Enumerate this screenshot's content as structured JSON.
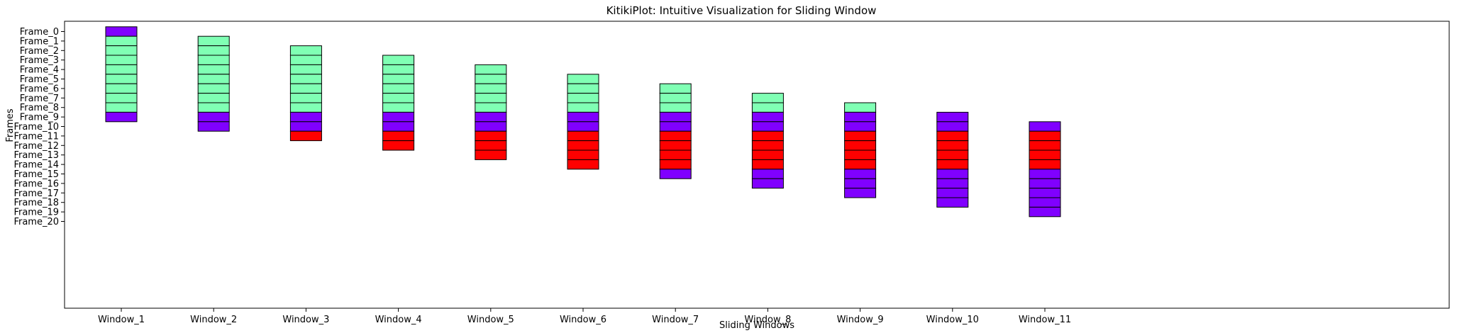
{
  "chart_data": {
    "type": "bar",
    "title": "KitikiPlot: Intuitive Visualization for Sliding Window",
    "xlabel": "Sliding Windows",
    "ylabel": "Frames",
    "categories": [
      "Window_1",
      "Window_2",
      "Window_3",
      "Window_4",
      "Window_5",
      "Window_6",
      "Window_7",
      "Window_8",
      "Window_9",
      "Window_10",
      "Window_11"
    ],
    "y_ticks": [
      "Frame_0",
      "Frame_1",
      "Frame_2",
      "Frame_3",
      "Frame_4",
      "Frame_5",
      "Frame_6",
      "Frame_7",
      "Frame_8",
      "Frame_9",
      "Frame_10",
      "Frame_11",
      "Frame_12",
      "Frame_13",
      "Frame_14",
      "Frame_15",
      "Frame_16",
      "Frame_17",
      "Frame_18",
      "Frame_19",
      "Frame_20"
    ],
    "grid": false,
    "colors": {
      "purple": "#8000ff",
      "green": "#80ffb4",
      "red": "#ff0000"
    },
    "windows": [
      {
        "start": 0,
        "cells": [
          "purple",
          "green",
          "green",
          "green",
          "green",
          "green",
          "green",
          "green",
          "green",
          "purple"
        ]
      },
      {
        "start": 1,
        "cells": [
          "green",
          "green",
          "green",
          "green",
          "green",
          "green",
          "green",
          "green",
          "purple",
          "purple"
        ]
      },
      {
        "start": 2,
        "cells": [
          "green",
          "green",
          "green",
          "green",
          "green",
          "green",
          "green",
          "purple",
          "purple",
          "red"
        ]
      },
      {
        "start": 3,
        "cells": [
          "green",
          "green",
          "green",
          "green",
          "green",
          "green",
          "purple",
          "purple",
          "red",
          "red"
        ]
      },
      {
        "start": 4,
        "cells": [
          "green",
          "green",
          "green",
          "green",
          "green",
          "purple",
          "purple",
          "red",
          "red",
          "red"
        ]
      },
      {
        "start": 5,
        "cells": [
          "green",
          "green",
          "green",
          "green",
          "purple",
          "purple",
          "red",
          "red",
          "red",
          "red"
        ]
      },
      {
        "start": 6,
        "cells": [
          "green",
          "green",
          "green",
          "purple",
          "purple",
          "red",
          "red",
          "red",
          "red",
          "purple"
        ]
      },
      {
        "start": 7,
        "cells": [
          "green",
          "green",
          "purple",
          "purple",
          "red",
          "red",
          "red",
          "red",
          "purple",
          "purple"
        ]
      },
      {
        "start": 8,
        "cells": [
          "green",
          "purple",
          "purple",
          "red",
          "red",
          "red",
          "red",
          "purple",
          "purple",
          "purple"
        ]
      },
      {
        "start": 9,
        "cells": [
          "purple",
          "purple",
          "red",
          "red",
          "red",
          "red",
          "purple",
          "purple",
          "purple",
          "purple"
        ]
      },
      {
        "start": 10,
        "cells": [
          "purple",
          "red",
          "red",
          "red",
          "red",
          "purple",
          "purple",
          "purple",
          "purple",
          "purple"
        ]
      }
    ]
  }
}
